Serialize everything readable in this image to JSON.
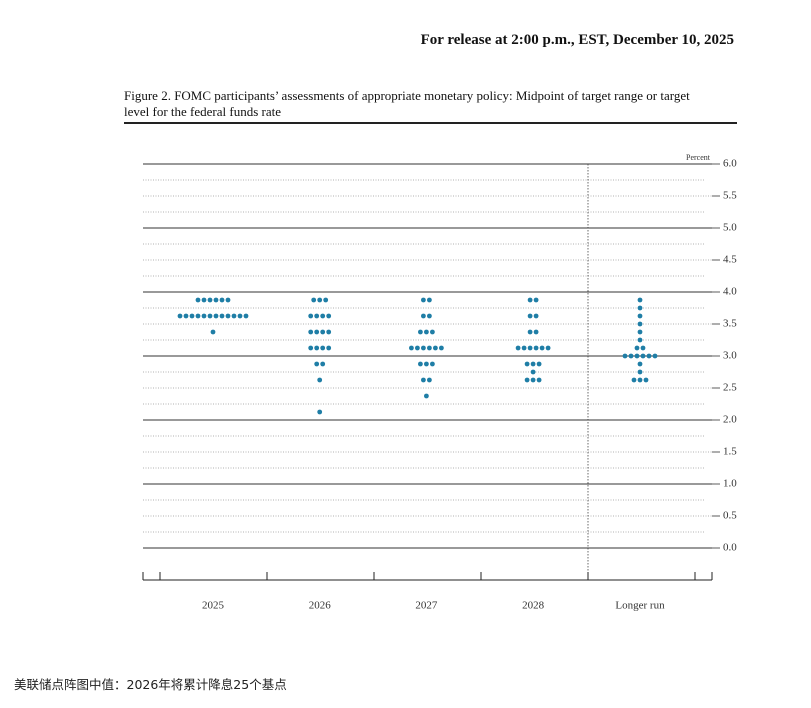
{
  "header": "For release at 2:00 p.m., EST, December 10, 2025",
  "caption": "美联储点阵图中值：2026年将累计降息25个基点",
  "chart_data": {
    "type": "dot",
    "title": "Figure 2. FOMC participants’ assessments of appropriate monetary policy: Midpoint of target range or target level for the federal funds rate",
    "y_label": "Percent",
    "color": "#1f7ea6",
    "ylim": [
      -0.5,
      6
    ],
    "yticks": [
      {
        "value": 0,
        "label": "0.0"
      },
      {
        "value": 0.5,
        "label": "0.5"
      },
      {
        "value": 1,
        "label": "1.0"
      },
      {
        "value": 1.5,
        "label": "1.5"
      },
      {
        "value": 2,
        "label": "2.0"
      },
      {
        "value": 2.5,
        "label": "2.5"
      },
      {
        "value": 3,
        "label": "3.0"
      },
      {
        "value": 3.5,
        "label": "3.5"
      },
      {
        "value": 4,
        "label": "4.0"
      },
      {
        "value": 4.5,
        "label": "4.5"
      },
      {
        "value": 5,
        "label": "5.0"
      },
      {
        "value": 5.5,
        "label": "5.5"
      },
      {
        "value": 6,
        "label": "6.0"
      }
    ],
    "series": [
      {
        "name": "2025",
        "values": [
          3.875,
          3.875,
          3.875,
          3.875,
          3.875,
          3.875,
          3.625,
          3.625,
          3.625,
          3.625,
          3.625,
          3.625,
          3.625,
          3.625,
          3.625,
          3.625,
          3.625,
          3.625,
          3.375
        ]
      },
      {
        "name": "2026",
        "values": [
          3.875,
          3.875,
          3.875,
          3.625,
          3.625,
          3.625,
          3.625,
          3.375,
          3.375,
          3.375,
          3.375,
          3.125,
          3.125,
          3.125,
          3.125,
          2.875,
          2.875,
          2.625,
          2.125
        ]
      },
      {
        "name": "2027",
        "values": [
          3.875,
          3.875,
          3.625,
          3.625,
          3.375,
          3.375,
          3.375,
          3.125,
          3.125,
          3.125,
          3.125,
          3.125,
          3.125,
          2.875,
          2.875,
          2.875,
          2.625,
          2.625,
          2.375
        ]
      },
      {
        "name": "2028",
        "values": [
          3.875,
          3.875,
          3.625,
          3.625,
          3.375,
          3.375,
          3.125,
          3.125,
          3.125,
          3.125,
          3.125,
          3.125,
          2.875,
          2.875,
          2.875,
          2.75,
          2.625,
          2.625,
          2.625
        ]
      },
      {
        "name": "Longer run",
        "values": [
          3.875,
          3.75,
          3.625,
          3.5,
          3.375,
          3.25,
          3.125,
          3.125,
          3,
          3,
          3,
          3,
          3,
          3,
          2.875,
          2.75,
          2.625,
          2.625,
          2.625
        ]
      }
    ]
  }
}
